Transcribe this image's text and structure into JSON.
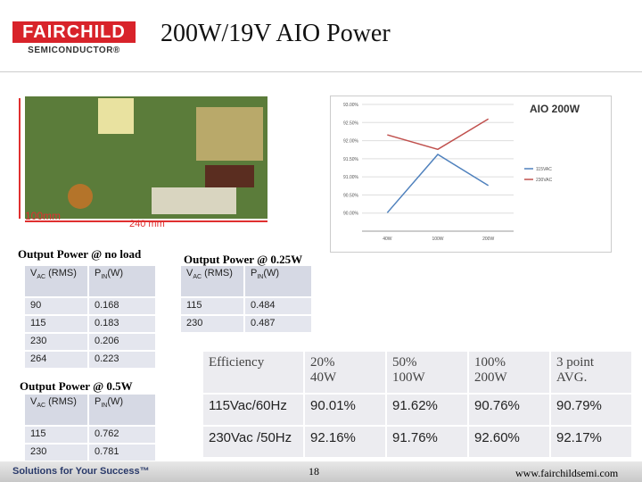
{
  "header": {
    "logo_top": "FAIRCHILD",
    "logo_bottom": "SEMICONDUCTOR®",
    "title": "200W/19V AIO Power"
  },
  "photo": {
    "height_label": "100mm",
    "width_label": "240 mm"
  },
  "chart_data": {
    "type": "line",
    "title": "AIO 200W",
    "categories": [
      "40W",
      "100W",
      "200W"
    ],
    "series": [
      {
        "name": "115VAC",
        "color": "#4f81bd",
        "values": [
          90.01,
          91.62,
          90.76
        ]
      },
      {
        "name": "230VAC",
        "color": "#c0504d",
        "values": [
          92.16,
          91.76,
          92.6
        ]
      }
    ],
    "ylim": [
      89.5,
      93
    ],
    "yticks": [
      {
        "value": 90,
        "label": "90.00%"
      },
      {
        "value": 90.5,
        "label": "90.50%"
      },
      {
        "value": 91,
        "label": "91.00%"
      },
      {
        "value": 91.5,
        "label": "91.50%"
      },
      {
        "value": 92,
        "label": "92.00%"
      },
      {
        "value": 92.5,
        "label": "92.50%"
      },
      {
        "value": 93,
        "label": "93.00%"
      }
    ],
    "grid": true
  },
  "no_load": {
    "title": "Output Power @ no load",
    "header": {
      "v": "V",
      "sub": "AC",
      "rest": "(RMS)",
      "p": "P",
      "psub": "IN",
      "punit": "(W)"
    },
    "rows": [
      [
        "90",
        "0.168"
      ],
      [
        "115",
        "0.183"
      ],
      [
        "230",
        "0.206"
      ],
      [
        "264",
        "0.223"
      ]
    ]
  },
  "quarter": {
    "title": "Output Power @ 0.25W",
    "header": {
      "v": "V",
      "sub": "AC",
      "rest": "(RMS)",
      "p": "P",
      "psub": "IN",
      "punit": "(W)"
    },
    "rows": [
      [
        "115",
        "0.484"
      ],
      [
        "230",
        "0.487"
      ]
    ]
  },
  "half": {
    "title": "Output Power @ 0.5W",
    "header": {
      "v": "V",
      "sub": "AC",
      "rest": "(RMS)",
      "p": "P",
      "psub": "IN",
      "punit": "(W)"
    },
    "rows": [
      [
        "115",
        "0.762"
      ],
      [
        "230",
        "0.781"
      ]
    ]
  },
  "efficiency": {
    "header": [
      "Efficiency",
      [
        "20%",
        "40W"
      ],
      [
        "50%",
        "100W"
      ],
      [
        "100%",
        "200W"
      ],
      [
        "3 point",
        "AVG."
      ]
    ],
    "rows": [
      [
        "115Vac/60Hz",
        "90.01%",
        "91.62%",
        "90.76%",
        "90.79%"
      ],
      [
        "230Vac /50Hz",
        "92.16%",
        "91.76%",
        "92.60%",
        "92.17%"
      ]
    ]
  },
  "footer": {
    "slogan": "Solutions for Your Success™",
    "page": "18",
    "url": "www.fairchildsemi.com"
  }
}
